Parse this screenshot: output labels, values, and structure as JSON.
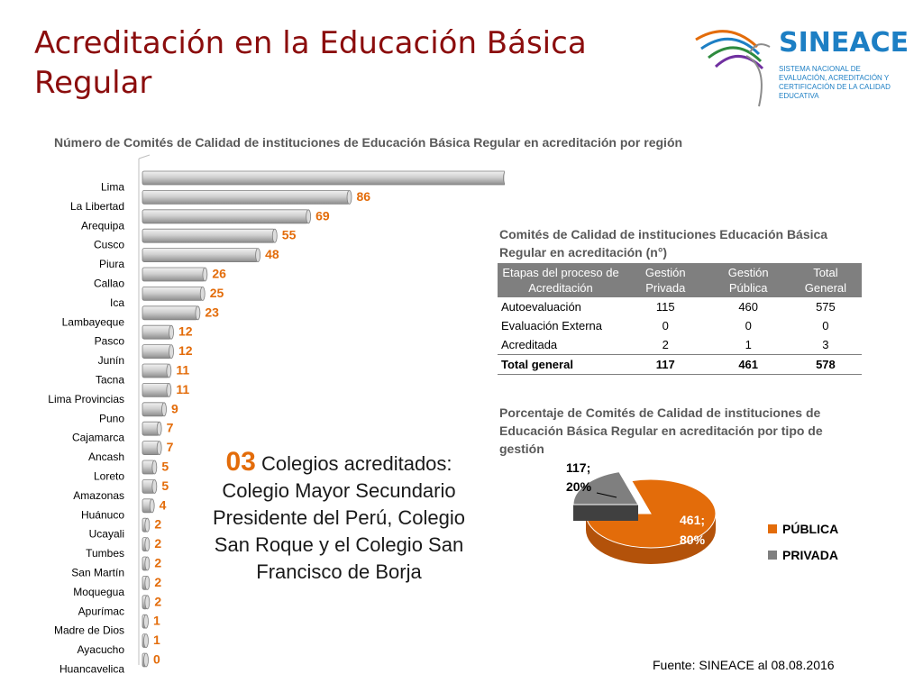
{
  "slide": {
    "title": "Acreditación en la Educación Básica Regular",
    "logo": {
      "name": "SINEACE",
      "subtitle": "SISTEMA NACIONAL DE EVALUACIÓN, ACREDITACIÓN Y CERTIFICACIÓN DE LA CALIDAD EDUCATIVA"
    },
    "note": {
      "number": "03",
      "text": " Colegios acreditados: Colegio Mayor Secundario Presidente del Perú, Colegio San Roque y el Colegio San Francisco de Borja"
    },
    "source": "Fuente: SINEACE al  08.08.2016",
    "colors": {
      "title": "#8b0d0d",
      "accent": "#e36c0a",
      "gray": "#7f7f7f",
      "logo": "#1d7fc4"
    }
  },
  "table": {
    "title": "Comités de Calidad de  instituciones Educación Básica Regular en acreditación  (n°)",
    "headers": [
      "Etapas del proceso de Acreditación",
      "Gestión Privada",
      "Gestión Pública",
      "Total General"
    ],
    "rows": [
      [
        "Autoevaluación",
        "115",
        "460",
        "575"
      ],
      [
        "Evaluación Externa",
        "0",
        "0",
        "0"
      ],
      [
        "Acreditada",
        "2",
        "1",
        "3"
      ]
    ],
    "total": [
      "Total general",
      "117",
      "461",
      "578"
    ]
  },
  "chart_data": [
    {
      "type": "bar",
      "orientation": "horizontal",
      "title": "Número de Comités de Calidad de instituciones de Educación Básica Regular en acreditación por región",
      "categories": [
        "Lima",
        "La Libertad",
        "Arequipa",
        "Cusco",
        "Piura",
        "Callao",
        "Ica",
        "Lambayeque",
        "Pasco",
        "Junín",
        "Tacna",
        "Lima Provincias",
        "Puno",
        "Cajamarca",
        "Ancash",
        "Loreto",
        "Amazonas",
        "Huánuco",
        "Ucayali",
        "Tumbes",
        "San Martín",
        "Moquegua",
        "Apurímac",
        "Madre de Dios",
        "Ayacucho",
        "Huancavelica"
      ],
      "values": [
        151,
        86,
        69,
        55,
        48,
        26,
        25,
        23,
        12,
        12,
        11,
        11,
        9,
        7,
        7,
        5,
        5,
        4,
        2,
        2,
        2,
        2,
        2,
        1,
        1,
        0
      ],
      "bar_color": "#c8c8c8",
      "label_color": "#e36c0a",
      "grid": false
    },
    {
      "type": "pie",
      "title": "Porcentaje de Comités de Calidad de instituciones de Educación Básica Regular en acreditación por tipo de gestión",
      "slices": [
        {
          "name": "PÚBLICA",
          "value": 461,
          "percent": "80%",
          "label": "461;",
          "color": "#e36c0a"
        },
        {
          "name": "PRIVADA",
          "value": 117,
          "percent": "20%",
          "label": "117;",
          "color": "#7f7f7f"
        }
      ],
      "legend_position": "right"
    }
  ]
}
